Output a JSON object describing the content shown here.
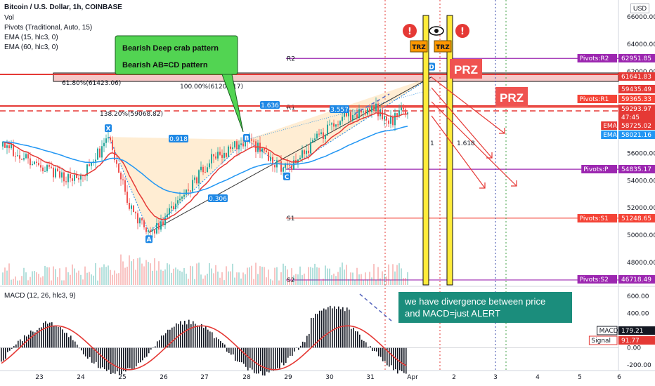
{
  "header": {
    "title": "Bitcoin / U.S. Dollar, 1h, COINBASE",
    "lines": [
      "Vol",
      "Pivots (Traditional, Auto, 15)",
      "EMA (15, hlc3, 0)",
      "EMA (60, hlc3, 0)"
    ],
    "currency": "USD",
    "macd_label": "MACD (12, 26, hlc3, 9)"
  },
  "annotations": {
    "green_note_1": "Bearish Deep crab pattern",
    "green_note_2": "Bearish AB=CD pattern",
    "teal_note_1": "we have divergence between price",
    "teal_note_2": "and MACD=just ALERT",
    "prz": "PRZ",
    "trz": "TRZ",
    "fib_1": "61.80%(61423.06)",
    "fib_2": "100.00%(61208.17)",
    "fib_3": "138.20%(59068.82)",
    "ratio_a": "1.636",
    "ratio_b": "3.557",
    "ratio_c": "0.918",
    "ratio_d": "0.306",
    "pt_x": "X",
    "pt_a": "A",
    "pt_b": "B",
    "pt_c": "C",
    "pt_d": "D",
    "r2": "R2",
    "r1": "R1",
    "s1": "S1",
    "s2": "S2",
    "mid_1": "1",
    "mid_2": "1.618"
  },
  "colors": {
    "up": "#26a69a",
    "down": "#ef5350",
    "ema15": "#e53935",
    "ema60": "#2196f3",
    "pivot": "#9c27b0",
    "pivot_s": "#f44336",
    "green_note": "#52d452",
    "teal_note": "#1b8d7c"
  },
  "chart_data": {
    "type": "candlestick",
    "price_axis": {
      "ticks": [
        "66000.00",
        "64000.00",
        "62000.00",
        "60000.00",
        "58000.00",
        "56000.00",
        "54000.00",
        "52000.00",
        "50000.00",
        "48000.00"
      ],
      "ylim": [
        46000,
        66500
      ]
    },
    "macd_axis": {
      "ticks": [
        "600.00",
        "400.00",
        "200.00",
        "0.00",
        "-200.00"
      ],
      "ylim": [
        -280,
        640
      ]
    },
    "time_axis": [
      "23",
      "24",
      "25",
      "26",
      "27",
      "28",
      "29",
      "30",
      "31",
      "Apr",
      "2",
      "3",
      "4",
      "5",
      "6"
    ],
    "price_tags": [
      {
        "label": "Pivots:R2",
        "value": "62951.85"
      },
      {
        "label": "",
        "value": "61641.83"
      },
      {
        "label": "",
        "value": "59435.49"
      },
      {
        "label": "Pivots:R1",
        "value": "59365.33"
      },
      {
        "label": "",
        "value": "59293.97"
      },
      {
        "label": "",
        "value": "47:45"
      },
      {
        "label": "EMA",
        "value": "58725.02"
      },
      {
        "label": "EMA",
        "value": "58021.16"
      },
      {
        "label": "Pivots:P",
        "value": "54835.17"
      },
      {
        "label": "Pivots:S1",
        "value": "51248.65"
      },
      {
        "label": "Pivots:S2",
        "value": "46718.49"
      }
    ],
    "macd_tags": [
      {
        "label": "MACD",
        "value": "179.21"
      },
      {
        "label": "Signal",
        "value": "91.77"
      }
    ],
    "pivots": {
      "R2": 62951.85,
      "R1": 59365.33,
      "P": 54835.17,
      "S1": 51248.65,
      "S2": 46718.49
    },
    "harmonic_points": {
      "X": 57200,
      "A": 50200,
      "B": 57000,
      "C": 54800,
      "D": 61600
    },
    "last_price": 59293.97
  }
}
